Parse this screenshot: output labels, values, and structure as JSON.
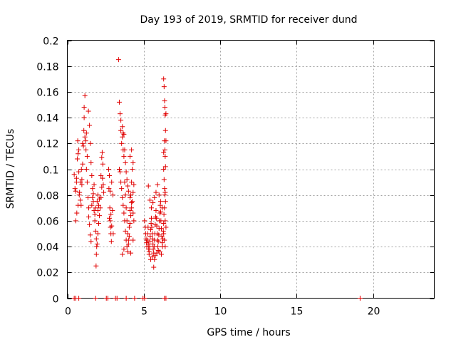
{
  "chart_data": {
    "type": "scatter",
    "title": "Day 193 of 2019, SRMTID for receiver dund",
    "xlabel": "GPS time / hours",
    "ylabel": "SRMTID / TECUs",
    "xlim": [
      0,
      24
    ],
    "ylim": [
      0,
      0.2
    ],
    "x_ticks": [
      0,
      5,
      10,
      15,
      20
    ],
    "x_tick_labels": [
      "0",
      "5",
      "10",
      "15",
      "20"
    ],
    "y_ticks": [
      0,
      0.02,
      0.04,
      0.06,
      0.08,
      0.1,
      0.12,
      0.14,
      0.16,
      0.18,
      0.2
    ],
    "y_tick_labels": [
      "0",
      "0.02",
      "0.04",
      "0.06",
      "0.08",
      "0.1",
      "0.12",
      "0.14",
      "0.16",
      "0.18",
      "0.2"
    ],
    "grid": true,
    "marker": "+",
    "marker_color": "#e00000",
    "series": [
      {
        "name": "SRMTID",
        "points": [
          [
            0.45,
            0.096
          ],
          [
            0.5,
            0.085
          ],
          [
            0.55,
            0.083
          ],
          [
            0.6,
            0.093
          ],
          [
            0.65,
            0.108
          ],
          [
            0.7,
            0.112
          ],
          [
            0.75,
            0.098
          ],
          [
            0.8,
            0.082
          ],
          [
            0.85,
            0.076
          ],
          [
            0.9,
            0.072
          ],
          [
            0.95,
            0.088
          ],
          [
            1.0,
            0.104
          ],
          [
            1.05,
            0.118
          ],
          [
            1.1,
            0.14
          ],
          [
            1.15,
            0.157
          ],
          [
            1.2,
            0.122
          ],
          [
            1.25,
            0.1
          ],
          [
            1.3,
            0.09
          ],
          [
            1.35,
            0.078
          ],
          [
            1.4,
            0.07
          ],
          [
            0.55,
            0.06
          ],
          [
            0.62,
            0.066
          ],
          [
            0.7,
            0.072
          ],
          [
            0.78,
            0.08
          ],
          [
            0.85,
            0.09
          ],
          [
            0.92,
            0.1
          ],
          [
            1.0,
            0.12
          ],
          [
            1.08,
            0.13
          ],
          [
            1.15,
            0.125
          ],
          [
            1.22,
            0.115
          ],
          [
            1.3,
            0.11
          ],
          [
            1.38,
            0.145
          ],
          [
            1.45,
            0.134
          ],
          [
            1.5,
            0.12
          ],
          [
            1.55,
            0.105
          ],
          [
            1.6,
            0.095
          ],
          [
            1.65,
            0.085
          ],
          [
            1.7,
            0.075
          ],
          [
            1.75,
            0.068
          ],
          [
            1.8,
            0.06
          ],
          [
            1.85,
            0.052
          ],
          [
            1.9,
            0.046
          ],
          [
            1.95,
            0.042
          ],
          [
            2.0,
            0.05
          ],
          [
            2.05,
            0.058
          ],
          [
            2.1,
            0.064
          ],
          [
            2.15,
            0.07
          ],
          [
            2.2,
            0.078
          ],
          [
            2.25,
            0.086
          ],
          [
            2.3,
            0.093
          ],
          [
            1.4,
            0.063
          ],
          [
            1.45,
            0.057
          ],
          [
            1.5,
            0.049
          ],
          [
            1.55,
            0.044
          ],
          [
            1.6,
            0.072
          ],
          [
            1.65,
            0.078
          ],
          [
            1.7,
            0.081
          ],
          [
            1.75,
            0.088
          ],
          [
            1.8,
            0.065
          ],
          [
            1.85,
            0.07
          ],
          [
            1.9,
            0.034
          ],
          [
            1.95,
            0.075
          ],
          [
            2.0,
            0.08
          ],
          [
            1.88,
            0.025
          ],
          [
            1.92,
            0.04
          ],
          [
            2.0,
            0.068
          ],
          [
            2.05,
            0.072
          ],
          [
            2.1,
            0.077
          ],
          [
            2.2,
            0.095
          ],
          [
            2.28,
            0.113
          ],
          [
            2.32,
            0.104
          ],
          [
            2.35,
            0.088
          ],
          [
            2.25,
            0.109
          ],
          [
            2.38,
            0.082
          ],
          [
            1.1,
            0.148
          ],
          [
            1.25,
            0.128
          ],
          [
            0.95,
            0.092
          ],
          [
            0.75,
            0.115
          ],
          [
            0.68,
            0.122
          ],
          [
            0.6,
            0.09
          ],
          [
            2.7,
            0.1
          ],
          [
            2.72,
            0.085
          ],
          [
            2.75,
            0.095
          ],
          [
            2.78,
            0.07
          ],
          [
            2.8,
            0.06
          ],
          [
            2.82,
            0.055
          ],
          [
            2.85,
            0.05
          ],
          [
            2.88,
            0.044
          ],
          [
            2.9,
            0.056
          ],
          [
            2.75,
            0.062
          ],
          [
            2.95,
            0.068
          ],
          [
            2.98,
            0.08
          ],
          [
            2.85,
            0.065
          ],
          [
            2.8,
            0.083
          ],
          [
            2.9,
            0.09
          ],
          [
            3.0,
            0.05
          ],
          [
            3.35,
            0.185
          ],
          [
            3.4,
            0.152
          ],
          [
            3.45,
            0.143
          ],
          [
            3.5,
            0.13
          ],
          [
            3.55,
            0.12
          ],
          [
            3.6,
            0.125
          ],
          [
            3.65,
            0.128
          ],
          [
            3.7,
            0.11
          ],
          [
            3.75,
            0.09
          ],
          [
            3.8,
            0.08
          ],
          [
            3.85,
            0.07
          ],
          [
            3.9,
            0.06
          ],
          [
            3.95,
            0.05
          ],
          [
            4.0,
            0.045
          ],
          [
            4.05,
            0.055
          ],
          [
            4.1,
            0.068
          ],
          [
            4.15,
            0.08
          ],
          [
            4.2,
            0.09
          ],
          [
            4.25,
            0.1
          ],
          [
            4.3,
            0.105
          ],
          [
            3.4,
            0.1
          ],
          [
            3.45,
            0.098
          ],
          [
            3.5,
            0.09
          ],
          [
            3.55,
            0.085
          ],
          [
            3.6,
            0.078
          ],
          [
            3.65,
            0.072
          ],
          [
            3.7,
            0.066
          ],
          [
            3.75,
            0.06
          ],
          [
            3.8,
            0.052
          ],
          [
            3.85,
            0.045
          ],
          [
            3.9,
            0.04
          ],
          [
            3.95,
            0.036
          ],
          [
            4.0,
            0.042
          ],
          [
            4.05,
            0.048
          ],
          [
            4.1,
            0.058
          ],
          [
            4.15,
            0.064
          ],
          [
            4.2,
            0.07
          ],
          [
            4.25,
            0.075
          ],
          [
            4.3,
            0.082
          ],
          [
            4.35,
            0.088
          ],
          [
            3.5,
            0.138
          ],
          [
            3.6,
            0.133
          ],
          [
            3.7,
            0.127
          ],
          [
            3.75,
            0.115
          ],
          [
            3.8,
            0.105
          ],
          [
            3.85,
            0.098
          ],
          [
            3.9,
            0.092
          ],
          [
            3.95,
            0.087
          ],
          [
            4.0,
            0.083
          ],
          [
            4.1,
            0.078
          ],
          [
            4.2,
            0.074
          ],
          [
            4.3,
            0.066
          ],
          [
            4.35,
            0.06
          ],
          [
            4.1,
            0.11
          ],
          [
            4.2,
            0.115
          ],
          [
            3.6,
            0.034
          ],
          [
            3.7,
            0.038
          ],
          [
            4.15,
            0.035
          ],
          [
            4.3,
            0.045
          ],
          [
            3.65,
            0.115
          ],
          [
            5.05,
            0.06
          ],
          [
            5.1,
            0.055
          ],
          [
            5.12,
            0.05
          ],
          [
            5.15,
            0.046
          ],
          [
            5.18,
            0.043
          ],
          [
            5.2,
            0.04
          ],
          [
            5.22,
            0.045
          ],
          [
            5.25,
            0.05
          ],
          [
            5.28,
            0.055
          ],
          [
            5.3,
            0.042
          ],
          [
            5.32,
            0.038
          ],
          [
            5.35,
            0.036
          ],
          [
            5.38,
            0.04
          ],
          [
            5.4,
            0.044
          ],
          [
            5.42,
            0.048
          ],
          [
            5.45,
            0.053
          ],
          [
            5.48,
            0.058
          ],
          [
            5.5,
            0.062
          ],
          [
            5.52,
            0.055
          ],
          [
            5.55,
            0.05
          ],
          [
            5.58,
            0.046
          ],
          [
            5.6,
            0.042
          ],
          [
            5.62,
            0.038
          ],
          [
            5.65,
            0.035
          ],
          [
            5.68,
            0.04
          ],
          [
            5.7,
            0.045
          ],
          [
            5.72,
            0.05
          ],
          [
            5.75,
            0.057
          ],
          [
            5.78,
            0.063
          ],
          [
            5.8,
            0.068
          ],
          [
            5.82,
            0.062
          ],
          [
            5.85,
            0.056
          ],
          [
            5.88,
            0.05
          ],
          [
            5.9,
            0.045
          ],
          [
            5.92,
            0.04
          ],
          [
            5.95,
            0.044
          ],
          [
            5.98,
            0.049
          ],
          [
            6.0,
            0.054
          ],
          [
            6.02,
            0.06
          ],
          [
            6.05,
            0.066
          ],
          [
            6.08,
            0.072
          ],
          [
            6.1,
            0.067
          ],
          [
            6.12,
            0.06
          ],
          [
            6.15,
            0.054
          ],
          [
            6.18,
            0.048
          ],
          [
            6.2,
            0.043
          ],
          [
            6.22,
            0.04
          ],
          [
            6.25,
            0.046
          ],
          [
            6.28,
            0.052
          ],
          [
            6.3,
            0.058
          ],
          [
            5.3,
            0.087
          ],
          [
            5.4,
            0.076
          ],
          [
            5.5,
            0.07
          ],
          [
            5.6,
            0.074
          ],
          [
            5.7,
            0.078
          ],
          [
            5.8,
            0.082
          ],
          [
            5.9,
            0.088
          ],
          [
            6.0,
            0.08
          ],
          [
            6.1,
            0.075
          ],
          [
            6.2,
            0.07
          ],
          [
            5.65,
            0.024
          ],
          [
            5.7,
            0.03
          ],
          [
            5.75,
            0.033
          ],
          [
            5.85,
            0.035
          ],
          [
            5.95,
            0.037
          ],
          [
            6.05,
            0.036
          ],
          [
            6.15,
            0.034
          ],
          [
            5.55,
            0.032
          ],
          [
            5.45,
            0.03
          ],
          [
            5.35,
            0.034
          ],
          [
            6.3,
            0.17
          ],
          [
            6.33,
            0.164
          ],
          [
            6.36,
            0.153
          ],
          [
            6.38,
            0.148
          ],
          [
            6.4,
            0.142
          ],
          [
            6.42,
            0.13
          ],
          [
            6.35,
            0.122
          ],
          [
            6.38,
            0.115
          ],
          [
            6.4,
            0.11
          ],
          [
            6.42,
            0.102
          ],
          [
            6.3,
            0.1
          ],
          [
            6.33,
            0.092
          ],
          [
            6.36,
            0.085
          ],
          [
            6.38,
            0.08
          ],
          [
            6.4,
            0.082
          ],
          [
            6.42,
            0.075
          ],
          [
            6.35,
            0.07
          ],
          [
            6.32,
            0.065
          ],
          [
            6.4,
            0.06
          ],
          [
            6.45,
            0.055
          ],
          [
            6.3,
            0.05
          ],
          [
            6.35,
            0.045
          ],
          [
            6.4,
            0.04
          ],
          [
            6.45,
            0.143
          ],
          [
            6.45,
            0.122
          ],
          [
            6.3,
            0.113
          ],
          [
            0.45,
            0
          ],
          [
            0.55,
            0
          ],
          [
            0.75,
            0
          ],
          [
            1.85,
            0
          ],
          [
            2.55,
            0
          ],
          [
            2.65,
            0
          ],
          [
            3.15,
            0
          ],
          [
            3.25,
            0
          ],
          [
            3.85,
            0
          ],
          [
            4.4,
            0
          ],
          [
            4.95,
            0
          ],
          [
            5.05,
            0
          ],
          [
            6.35,
            0
          ],
          [
            6.45,
            0
          ],
          [
            19.15,
            0
          ]
        ]
      }
    ]
  }
}
